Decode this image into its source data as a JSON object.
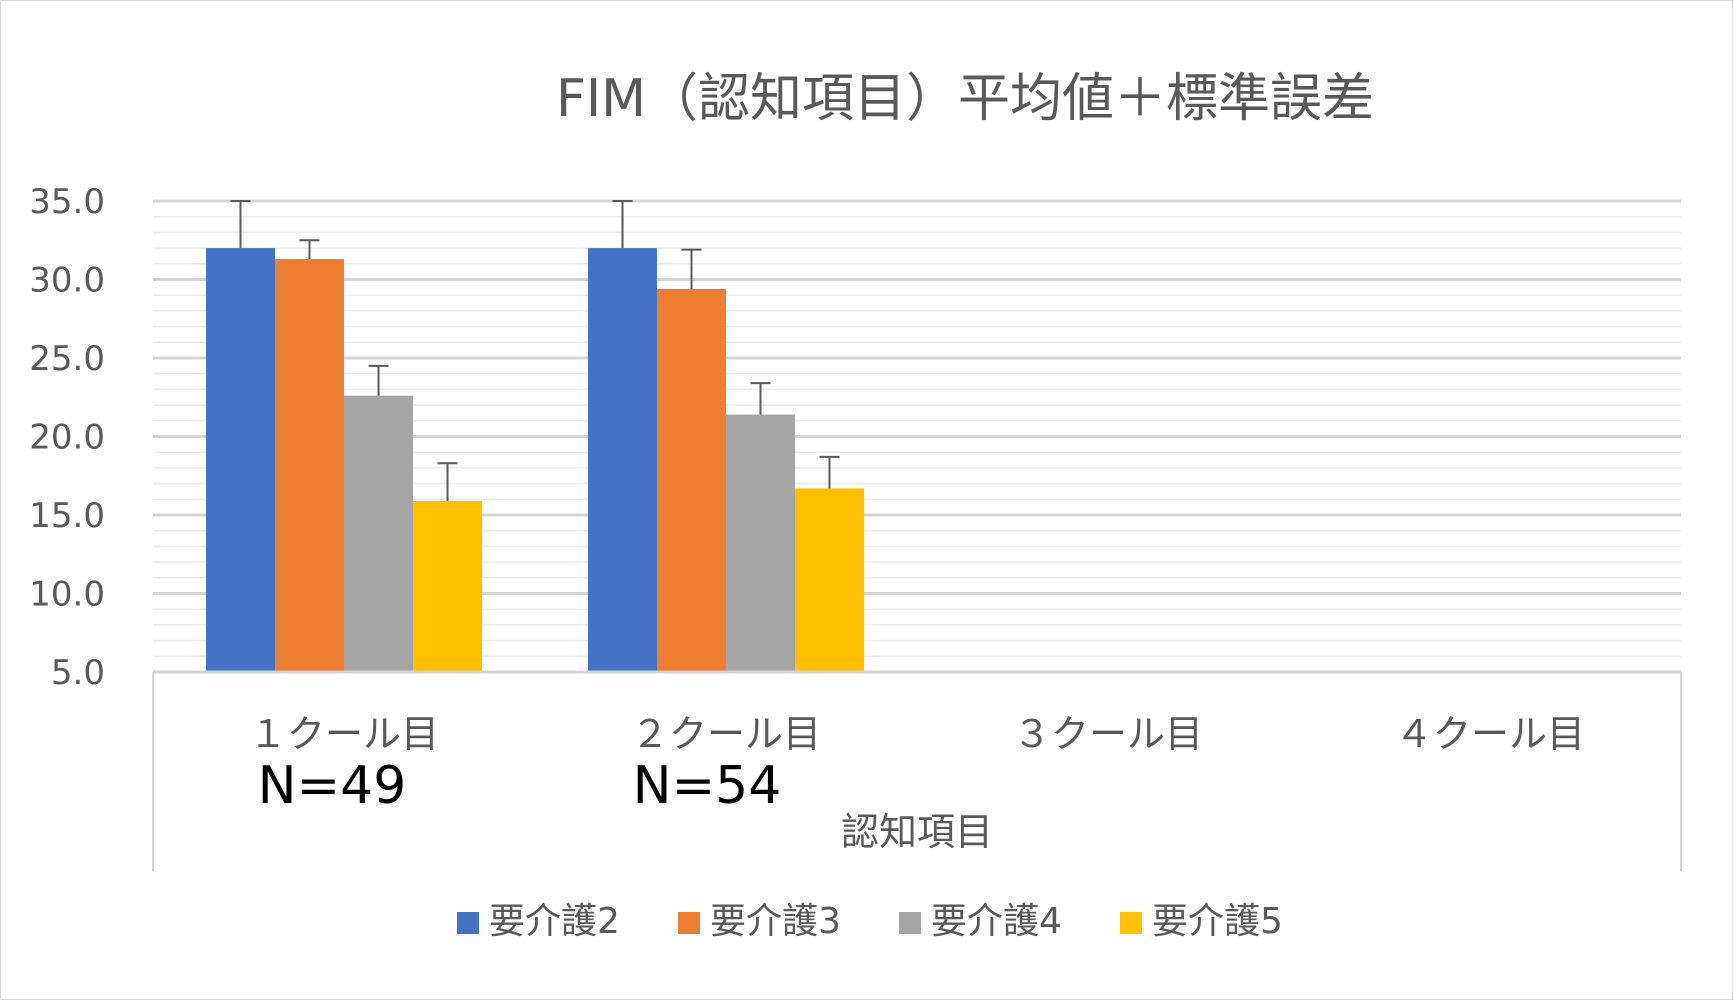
{
  "chart_data": {
    "type": "bar",
    "title": "FIM（認知項目）平均値＋標準誤差",
    "xlabel": "認知項目",
    "ylabel": "",
    "ylim": [
      5,
      35
    ],
    "ytick_step": 5,
    "grid": true,
    "legend_position": "bottom",
    "categories": [
      "１クール目",
      "２クール目",
      "３クール目",
      "４クール目"
    ],
    "yticks": [
      "5.0",
      "10.0",
      "15.0",
      "20.0",
      "25.0",
      "30.0",
      "35.0"
    ],
    "series": [
      {
        "name": "要介護2",
        "color": "#4472C4",
        "values": [
          32.0,
          32.0,
          null,
          null
        ],
        "errors": [
          3.0,
          3.0,
          null,
          null
        ]
      },
      {
        "name": "要介護3",
        "color": "#ED7D31",
        "values": [
          31.3,
          29.4,
          null,
          null
        ],
        "errors": [
          1.2,
          2.5,
          null,
          null
        ]
      },
      {
        "name": "要介護4",
        "color": "#A5A5A5",
        "values": [
          22.6,
          21.4,
          null,
          null
        ],
        "errors": [
          1.9,
          2.0,
          null,
          null
        ]
      },
      {
        "name": "要介護5",
        "color": "#FFC000",
        "values": [
          15.9,
          16.7,
          null,
          null
        ],
        "errors": [
          2.4,
          2.0,
          null,
          null
        ]
      }
    ],
    "annotations": [
      "N=49",
      "N=54",
      "",
      ""
    ]
  }
}
